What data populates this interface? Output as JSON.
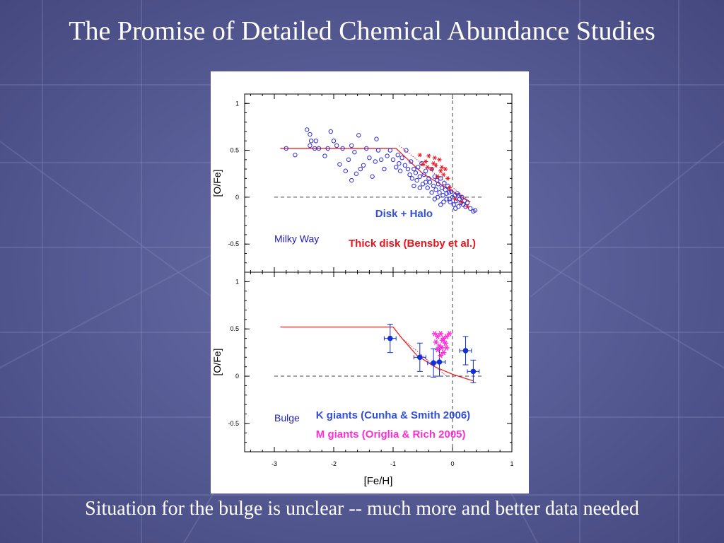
{
  "slide": {
    "title": "The Promise of Detailed Chemical Abundance Studies",
    "footer": "Situation for the bulge is unclear -- much more and better data needed"
  },
  "colors": {
    "background": "#585c96",
    "disk_halo": "#2d2de0",
    "thick_disk": "#e8141e",
    "k_giants": "#1230d8",
    "m_giants": "#ff2dd8",
    "model_line": "#ee2020",
    "reference_lines": "#444444",
    "text_white": "#ffffff"
  },
  "chart_data": [
    {
      "type": "scatter",
      "panel_label": "Milky Way",
      "xlabel": "",
      "ylabel": "[O/Fe]",
      "xlim": [
        -3.5,
        1
      ],
      "ylim": [
        -0.8,
        1.1
      ],
      "yticks": [
        "1",
        "0.5",
        "0",
        "-0.5"
      ],
      "reference_lines": {
        "x": 0,
        "y": 0,
        "style": "dashed"
      },
      "model_line": {
        "x": [
          -2.9,
          -0.95,
          -0.5,
          0.3
        ],
        "y": [
          0.52,
          0.52,
          0.25,
          -0.05
        ]
      },
      "model_line_dotted": {
        "x": [
          -0.9,
          0.25
        ],
        "y": [
          0.55,
          -0.02
        ]
      },
      "series": [
        {
          "name": "Disk + Halo",
          "marker": "open-circle",
          "points": [
            [
              -2.8,
              0.52
            ],
            [
              -2.65,
              0.45
            ],
            [
              -2.45,
              0.72
            ],
            [
              -2.4,
              0.67
            ],
            [
              -2.4,
              0.55
            ],
            [
              -2.38,
              0.6
            ],
            [
              -2.32,
              0.52
            ],
            [
              -2.3,
              0.6
            ],
            [
              -2.25,
              0.52
            ],
            [
              -2.15,
              0.44
            ],
            [
              -2.1,
              0.52
            ],
            [
              -2.05,
              0.7
            ],
            [
              -2.0,
              0.6
            ],
            [
              -1.95,
              0.55
            ],
            [
              -1.9,
              0.35
            ],
            [
              -1.85,
              0.52
            ],
            [
              -1.8,
              0.28
            ],
            [
              -1.75,
              0.4
            ],
            [
              -1.7,
              0.55
            ],
            [
              -1.7,
              0.18
            ],
            [
              -1.65,
              0.48
            ],
            [
              -1.62,
              0.25
            ],
            [
              -1.58,
              0.66
            ],
            [
              -1.55,
              0.3
            ],
            [
              -1.5,
              0.34
            ],
            [
              -1.45,
              0.52
            ],
            [
              -1.4,
              0.42
            ],
            [
              -1.35,
              0.22
            ],
            [
              -1.3,
              0.38
            ],
            [
              -1.28,
              0.62
            ],
            [
              -1.25,
              0.5
            ],
            [
              -1.2,
              0.4
            ],
            [
              -1.15,
              0.3
            ],
            [
              -1.1,
              0.44
            ],
            [
              -1.05,
              0.5
            ],
            [
              -1.0,
              0.4
            ],
            [
              -0.95,
              0.32
            ],
            [
              -0.92,
              0.45
            ],
            [
              -0.9,
              0.36
            ],
            [
              -0.88,
              0.28
            ],
            [
              -0.85,
              0.42
            ],
            [
              -0.8,
              0.34
            ],
            [
              -0.78,
              0.5
            ],
            [
              -0.75,
              0.3
            ],
            [
              -0.72,
              0.24
            ],
            [
              -0.7,
              0.38
            ],
            [
              -0.68,
              0.2
            ],
            [
              -0.65,
              0.3
            ],
            [
              -0.62,
              0.26
            ],
            [
              -0.6,
              0.18
            ],
            [
              -0.58,
              0.32
            ],
            [
              -0.55,
              0.22
            ],
            [
              -0.52,
              0.36
            ],
            [
              -0.5,
              0.14
            ],
            [
              -0.48,
              0.24
            ],
            [
              -0.45,
              0.28
            ],
            [
              -0.42,
              0.1
            ],
            [
              -0.4,
              0.2
            ],
            [
              -0.38,
              0.16
            ],
            [
              -0.35,
              0.3
            ],
            [
              -0.32,
              0.12
            ],
            [
              -0.3,
              0.22
            ],
            [
              -0.28,
              0.08
            ],
            [
              -0.26,
              0.18
            ],
            [
              -0.24,
              0.14
            ],
            [
              -0.22,
              0.05
            ],
            [
              -0.2,
              0.2
            ],
            [
              -0.18,
              0.1
            ],
            [
              -0.16,
              0.02
            ],
            [
              -0.14,
              0.15
            ],
            [
              -0.12,
              0.08
            ],
            [
              -0.1,
              -0.02
            ],
            [
              -0.08,
              0.12
            ],
            [
              -0.06,
              0.05
            ],
            [
              -0.04,
              -0.05
            ],
            [
              -0.02,
              0.06
            ],
            [
              0.0,
              0.0
            ],
            [
              0.02,
              -0.08
            ],
            [
              0.04,
              0.02
            ],
            [
              0.06,
              -0.04
            ],
            [
              0.08,
              0.04
            ],
            [
              0.1,
              -0.1
            ],
            [
              0.12,
              -0.02
            ],
            [
              0.14,
              -0.06
            ],
            [
              0.16,
              0.0
            ],
            [
              0.18,
              -0.08
            ],
            [
              0.2,
              -0.04
            ],
            [
              0.22,
              -0.1
            ],
            [
              0.25,
              -0.06
            ],
            [
              0.3,
              -0.12
            ],
            [
              0.35,
              -0.15
            ],
            [
              0.38,
              -0.14
            ],
            [
              -0.55,
              0.1
            ],
            [
              -0.35,
              0.05
            ],
            [
              -0.25,
              0.0
            ],
            [
              -0.15,
              -0.05
            ],
            [
              -0.05,
              -0.02
            ],
            [
              0.05,
              -0.12
            ],
            [
              -0.45,
              0.16
            ],
            [
              -0.65,
              0.12
            ],
            [
              -0.3,
              -0.02
            ],
            [
              -0.1,
              0.04
            ],
            [
              -0.2,
              -0.08
            ],
            [
              0.1,
              0.02
            ]
          ]
        },
        {
          "name": "Thick disk (Bensby et al.)",
          "marker": "asterisk",
          "points": [
            [
              -0.55,
              0.45
            ],
            [
              -0.45,
              0.38
            ],
            [
              -0.4,
              0.44
            ],
            [
              -0.35,
              0.3
            ],
            [
              -0.3,
              0.42
            ],
            [
              -0.28,
              0.34
            ],
            [
              -0.22,
              0.4
            ],
            [
              -0.2,
              0.28
            ],
            [
              -0.18,
              0.32
            ],
            [
              -0.12,
              0.3
            ],
            [
              -0.08,
              0.2
            ],
            [
              -0.5,
              0.35
            ],
            [
              -0.42,
              0.32
            ],
            [
              -0.25,
              0.22
            ],
            [
              -0.15,
              0.24
            ],
            [
              -0.05,
              0.1
            ],
            [
              0.05,
              -0.02
            ],
            [
              0.15,
              -0.05
            ],
            [
              0.25,
              -0.1
            ],
            [
              -0.32,
              0.36
            ]
          ]
        }
      ],
      "annotations": [
        "Disk + Halo",
        "Thick disk (Bensby et al.)",
        "Milky Way"
      ]
    },
    {
      "type": "scatter",
      "panel_label": "Bulge",
      "xlabel": "[Fe/H]",
      "ylabel": "[O/Fe]",
      "xlim": [
        -3.5,
        1
      ],
      "ylim": [
        -0.8,
        1.1
      ],
      "xticks": [
        "-3",
        "-2",
        "-1",
        "0",
        "1"
      ],
      "yticks": [
        "1",
        "0.5",
        "0",
        "-0.5"
      ],
      "reference_lines": {
        "x": 0,
        "y": 0,
        "style": "dashed"
      },
      "model_line": {
        "x": [
          -2.9,
          -1.0,
          -0.85,
          -0.6,
          -0.3,
          0.0,
          0.35
        ],
        "y": [
          0.52,
          0.52,
          0.4,
          0.22,
          0.1,
          0.02,
          -0.05
        ]
      },
      "model_line_dotted": {
        "x": [
          -0.85,
          -0.1
        ],
        "y": [
          0.4,
          0.0
        ]
      },
      "series": [
        {
          "name": "K giants (Cunha & Smith 2006)",
          "marker": "filled-circle-errorbar",
          "points": [
            {
              "x": -1.05,
              "y": 0.4,
              "xerr": 0.1,
              "yerr": 0.15
            },
            {
              "x": -0.55,
              "y": 0.2,
              "xerr": 0.1,
              "yerr": 0.15
            },
            {
              "x": -0.32,
              "y": 0.14,
              "xerr": 0.1,
              "yerr": 0.15
            },
            {
              "x": -0.22,
              "y": 0.15,
              "xerr": 0.1,
              "yerr": 0.15
            },
            {
              "x": 0.22,
              "y": 0.27,
              "xerr": 0.1,
              "yerr": 0.15
            },
            {
              "x": 0.35,
              "y": 0.05,
              "xerr": 0.1,
              "yerr": 0.12
            }
          ]
        },
        {
          "name": "M giants (Origlia & Rich 2005)",
          "marker": "asterisk",
          "points": [
            [
              -0.3,
              0.45
            ],
            [
              -0.25,
              0.42
            ],
            [
              -0.2,
              0.45
            ],
            [
              -0.15,
              0.4
            ],
            [
              -0.1,
              0.42
            ],
            [
              -0.05,
              0.45
            ],
            [
              -0.28,
              0.36
            ],
            [
              -0.22,
              0.32
            ],
            [
              -0.18,
              0.3
            ],
            [
              -0.15,
              0.25
            ],
            [
              -0.12,
              0.35
            ],
            [
              -0.25,
              0.28
            ],
            [
              -0.2,
              0.22
            ],
            [
              -0.17,
              0.38
            ],
            [
              -0.1,
              0.3
            ]
          ]
        }
      ],
      "annotations": [
        "K giants (Cunha & Smith 2006)",
        "M giants (Origlia & Rich 2005)",
        "Bulge"
      ]
    }
  ]
}
